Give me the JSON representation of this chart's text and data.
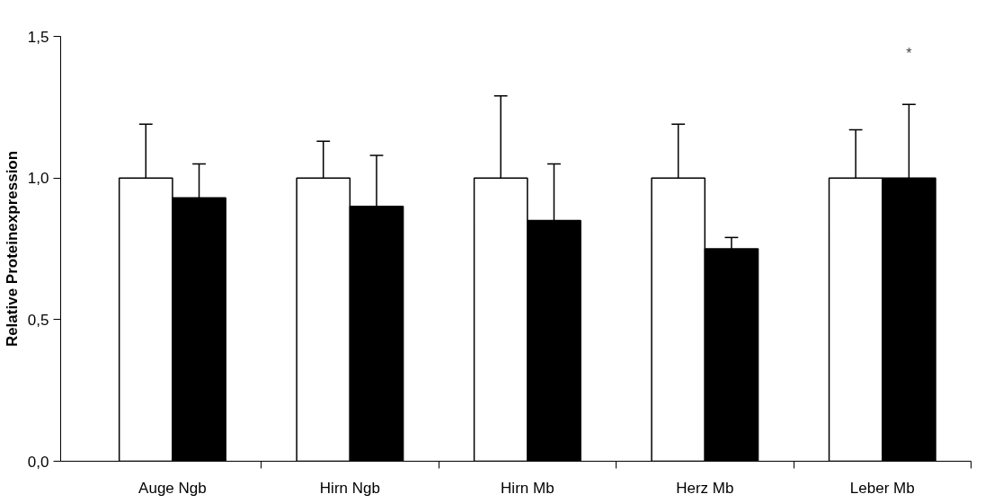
{
  "chart_data": {
    "type": "bar",
    "ylabel": "Relative Proteinexpression",
    "categories": [
      "Auge Ngb",
      "Hirn Ngb",
      "Hirn Mb",
      "Herz Mb",
      "Leber Mb"
    ],
    "series": [
      {
        "color": "#ffffff",
        "values": [
          1.0,
          1.0,
          1.0,
          1.0,
          1.0
        ],
        "errors": [
          [
            1.0,
            1.19
          ],
          [
            1.0,
            1.13
          ],
          [
            1.0,
            1.29
          ],
          [
            1.0,
            1.19
          ],
          [
            1.0,
            1.17
          ]
        ]
      },
      {
        "color": "#000000",
        "values": [
          0.93,
          0.9,
          0.85,
          0.75,
          1.0
        ],
        "errors": [
          [
            0.93,
            1.05
          ],
          [
            0.9,
            1.08
          ],
          [
            0.85,
            1.05
          ],
          [
            0.75,
            0.79
          ],
          [
            1.0,
            1.26
          ]
        ]
      }
    ],
    "ylim": [
      0,
      1.5
    ],
    "yticks": [
      {
        "value": 0,
        "label": "0,0"
      },
      {
        "value": 0.5,
        "label": "0,5"
      },
      {
        "value": 1.0,
        "label": "1,0"
      },
      {
        "value": 1.5,
        "label": "1,5"
      }
    ],
    "annotations": [
      "*"
    ],
    "grid": false
  }
}
